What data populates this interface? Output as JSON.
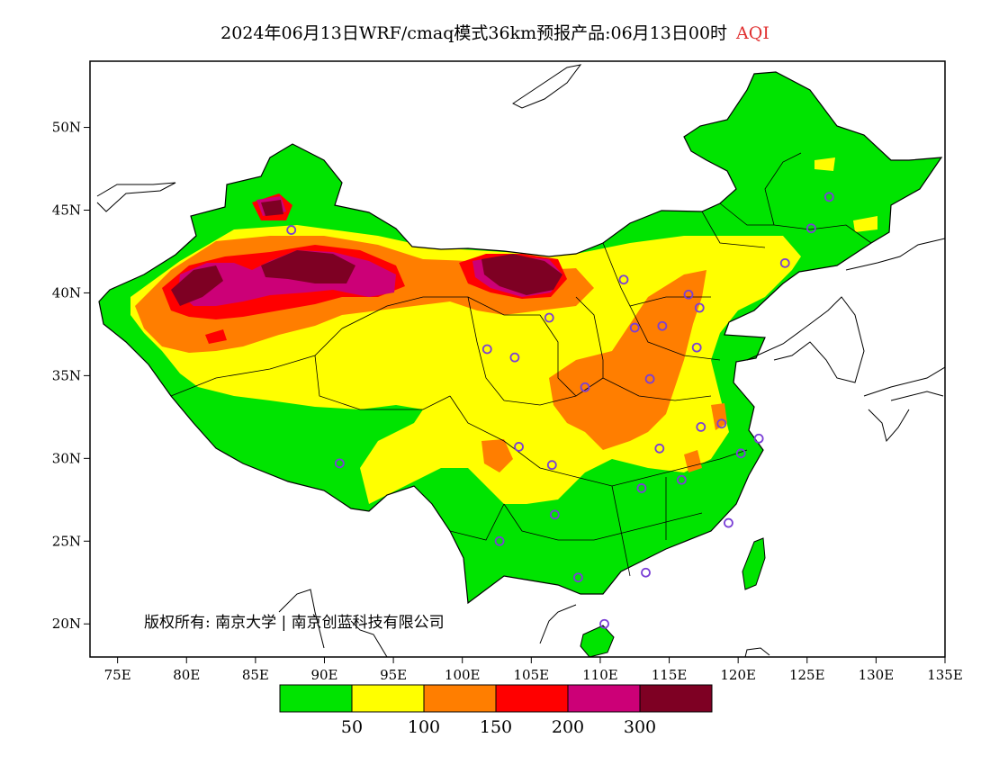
{
  "title": {
    "main": "2024年06月13日WRF/cmaq模式36km预报产品:06月13日00时",
    "variable": "AQI"
  },
  "map": {
    "lon_range": [
      73,
      135
    ],
    "lat_range": [
      18,
      54
    ],
    "lon_ticks": [
      "75E",
      "80E",
      "85E",
      "90E",
      "95E",
      "100E",
      "105E",
      "110E",
      "115E",
      "120E",
      "125E",
      "130E",
      "135E"
    ],
    "lon_tick_values": [
      75,
      80,
      85,
      90,
      95,
      100,
      105,
      110,
      115,
      120,
      125,
      130,
      135
    ],
    "lat_ticks": [
      "20N",
      "25N",
      "30N",
      "35N",
      "40N",
      "45N",
      "50N"
    ],
    "lat_tick_values": [
      20,
      25,
      30,
      35,
      40,
      45,
      50
    ],
    "copyright": "版权所有: 南京大学 | 南京创蓝科技有限公司",
    "background_color": "#ffffff"
  },
  "legend": {
    "colors": [
      "#00e400",
      "#ffff00",
      "#ff7e00",
      "#ff0000",
      "#cc0077",
      "#7e0023"
    ],
    "labels": [
      "50",
      "100",
      "150",
      "200",
      "300"
    ]
  },
  "stations": [
    {
      "lon": 87.6,
      "lat": 43.8
    },
    {
      "lon": 91.1,
      "lat": 29.7
    },
    {
      "lon": 101.8,
      "lat": 36.6
    },
    {
      "lon": 103.8,
      "lat": 36.1
    },
    {
      "lon": 106.3,
      "lat": 38.5
    },
    {
      "lon": 111.7,
      "lat": 40.8
    },
    {
      "lon": 116.4,
      "lat": 39.9
    },
    {
      "lon": 117.2,
      "lat": 39.1
    },
    {
      "lon": 114.5,
      "lat": 38.0
    },
    {
      "lon": 112.5,
      "lat": 37.9
    },
    {
      "lon": 117.0,
      "lat": 36.7
    },
    {
      "lon": 113.6,
      "lat": 34.8
    },
    {
      "lon": 108.9,
      "lat": 34.3
    },
    {
      "lon": 104.1,
      "lat": 30.7
    },
    {
      "lon": 106.5,
      "lat": 29.6
    },
    {
      "lon": 114.3,
      "lat": 30.6
    },
    {
      "lon": 117.3,
      "lat": 31.9
    },
    {
      "lon": 118.8,
      "lat": 32.1
    },
    {
      "lon": 120.2,
      "lat": 30.3
    },
    {
      "lon": 121.5,
      "lat": 31.2
    },
    {
      "lon": 115.9,
      "lat": 28.7
    },
    {
      "lon": 113.0,
      "lat": 28.2
    },
    {
      "lon": 106.7,
      "lat": 26.6
    },
    {
      "lon": 102.7,
      "lat": 25.0
    },
    {
      "lon": 119.3,
      "lat": 26.1
    },
    {
      "lon": 113.3,
      "lat": 23.1
    },
    {
      "lon": 108.4,
      "lat": 22.8
    },
    {
      "lon": 110.3,
      "lat": 20.0
    },
    {
      "lon": 123.4,
      "lat": 41.8
    },
    {
      "lon": 125.3,
      "lat": 43.9
    },
    {
      "lon": 126.6,
      "lat": 45.8
    }
  ]
}
